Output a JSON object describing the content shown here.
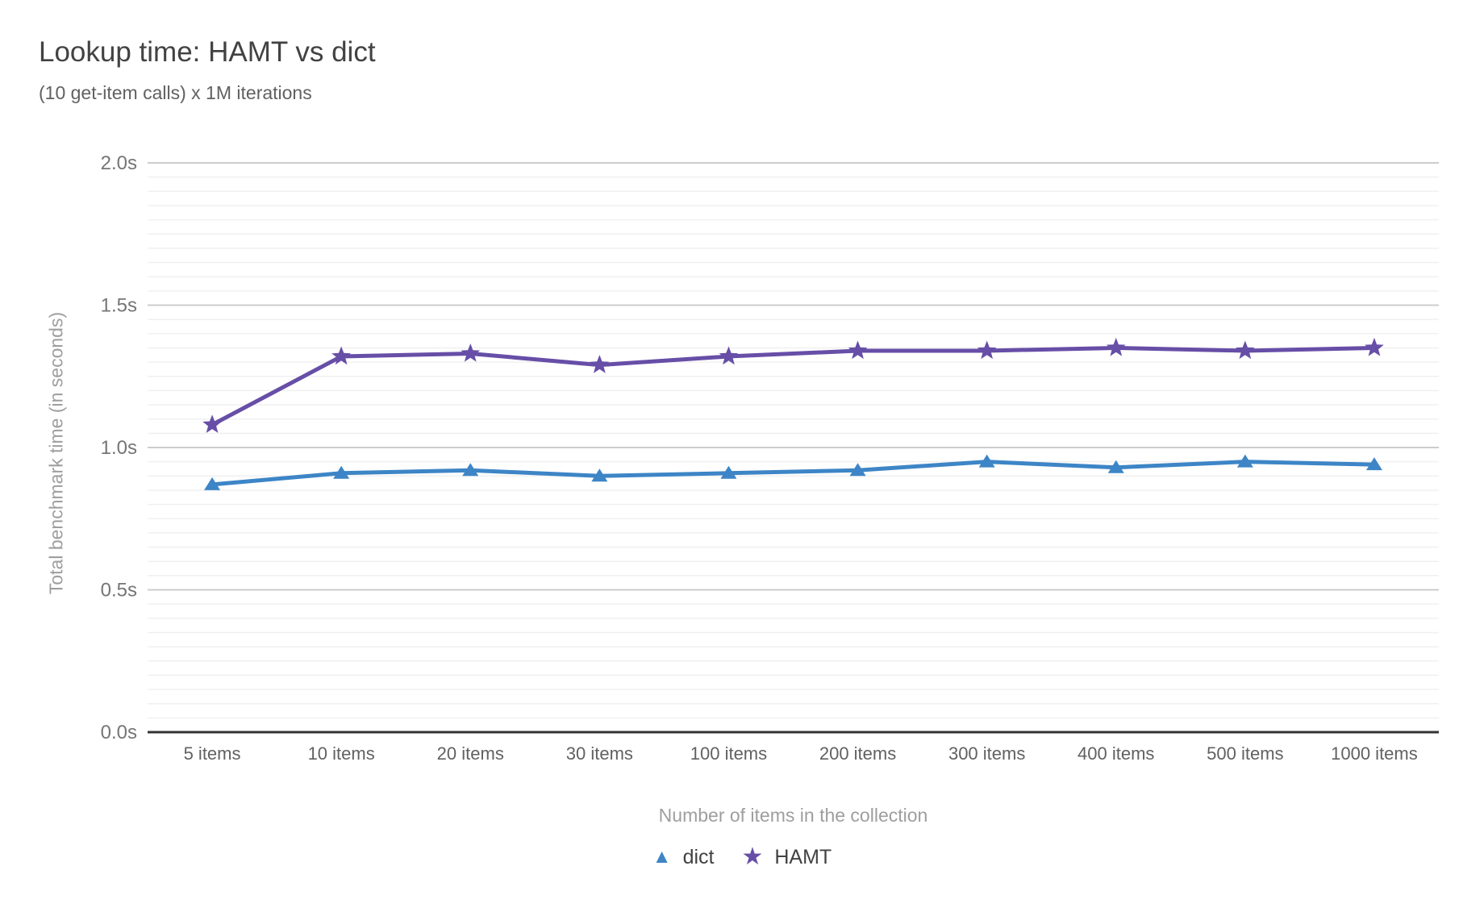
{
  "chart_data": {
    "type": "line",
    "title": "Lookup time: HAMT vs dict",
    "subtitle": "(10 get-item calls) x 1M iterations",
    "xlabel": "Number of items in the collection",
    "ylabel": "Total benchmark time (in seconds)",
    "categories": [
      "5 items",
      "10 items",
      "20 items",
      "30 items",
      "100 items",
      "200 items",
      "300 items",
      "400 items",
      "500 items",
      "1000 items"
    ],
    "series": [
      {
        "name": "dict",
        "marker": "triangle",
        "color": "#3d85c6",
        "values": [
          0.87,
          0.91,
          0.92,
          0.9,
          0.91,
          0.92,
          0.95,
          0.93,
          0.95,
          0.94
        ]
      },
      {
        "name": "HAMT",
        "marker": "star",
        "color": "#674ea7",
        "values": [
          1.08,
          1.32,
          1.33,
          1.29,
          1.32,
          1.34,
          1.34,
          1.35,
          1.34,
          1.35
        ]
      }
    ],
    "ylim": [
      0,
      2
    ],
    "ytick_values": [
      0,
      0.5,
      1.0,
      1.5,
      2.0
    ],
    "ytick_labels": [
      "0.0s",
      "0.5s",
      "1.0s",
      "1.5s",
      "2.0s"
    ],
    "minor_grid_step": 0.05,
    "grid": "on",
    "legend_position": "bottom"
  },
  "style": {
    "minor_grid_color": "#f0f0f0",
    "major_grid_color": "#cccccc",
    "axis_line_color": "#333333"
  }
}
